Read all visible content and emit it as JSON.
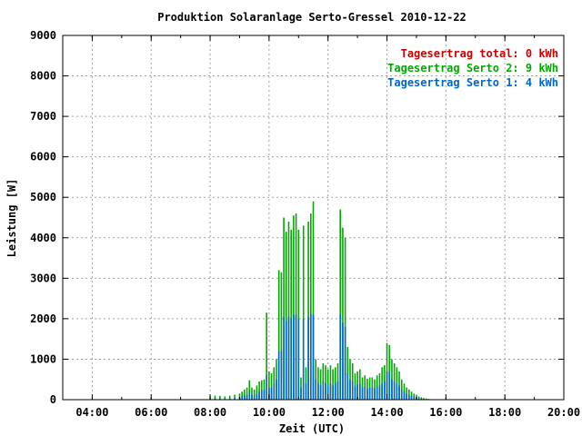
{
  "chart_data": {
    "type": "bar",
    "title": "Produktion Solaranlage Serto-Gressel 2010-12-22",
    "xlabel": "Zeit (UTC)",
    "ylabel": "Leistung [W]",
    "xlim": [
      "03:00",
      "20:00"
    ],
    "ylim": [
      0,
      9000
    ],
    "x_ticks": [
      "04:00",
      "06:00",
      "08:00",
      "10:00",
      "12:00",
      "14:00",
      "16:00",
      "18:00",
      "20:00"
    ],
    "y_ticks": [
      "0",
      "1000",
      "2000",
      "3000",
      "4000",
      "5000",
      "6000",
      "7000",
      "8000",
      "9000"
    ],
    "grid": true,
    "legend_position": "top-right",
    "legend": [
      {
        "label": "Tagesertrag total: 0 kWh",
        "color": "#cc0000"
      },
      {
        "label": "Tagesertrag Serto 2: 9 kWh",
        "color": "#00aa00"
      },
      {
        "label": "Tagesertrag Serto 1: 4 kWh",
        "color": "#0066cc"
      }
    ],
    "x": [
      "08:00",
      "08:10",
      "08:20",
      "08:30",
      "08:40",
      "08:50",
      "09:00",
      "09:05",
      "09:10",
      "09:15",
      "09:20",
      "09:25",
      "09:30",
      "09:35",
      "09:40",
      "09:45",
      "09:50",
      "09:55",
      "10:00",
      "10:05",
      "10:10",
      "10:15",
      "10:20",
      "10:25",
      "10:30",
      "10:35",
      "10:40",
      "10:45",
      "10:50",
      "10:55",
      "11:00",
      "11:05",
      "11:10",
      "11:15",
      "11:20",
      "11:25",
      "11:30",
      "11:35",
      "11:40",
      "11:45",
      "11:50",
      "11:55",
      "12:00",
      "12:05",
      "12:10",
      "12:15",
      "12:20",
      "12:25",
      "12:30",
      "12:35",
      "12:40",
      "12:45",
      "12:50",
      "12:55",
      "13:00",
      "13:05",
      "13:10",
      "13:15",
      "13:20",
      "13:25",
      "13:30",
      "13:35",
      "13:40",
      "13:45",
      "13:50",
      "13:55",
      "14:00",
      "14:05",
      "14:10",
      "14:15",
      "14:20",
      "14:25",
      "14:30",
      "14:35",
      "14:40",
      "14:45",
      "14:50",
      "14:55",
      "15:00",
      "15:05",
      "15:10",
      "15:15",
      "15:20",
      "15:25",
      "15:30",
      "15:35",
      "15:40"
    ],
    "series": [
      {
        "name": "Serto 2",
        "color": "#00aa00",
        "values": [
          80,
          100,
          90,
          80,
          100,
          120,
          150,
          200,
          250,
          300,
          480,
          300,
          250,
          350,
          450,
          480,
          500,
          2150,
          700,
          650,
          800,
          1000,
          3200,
          3150,
          4500,
          4150,
          4400,
          4200,
          4550,
          4600,
          4200,
          550,
          4300,
          800,
          4400,
          4600,
          4900,
          1000,
          800,
          750,
          900,
          850,
          750,
          850,
          750,
          800,
          900,
          4700,
          4250,
          4000,
          1300,
          1000,
          900,
          650,
          700,
          750,
          550,
          600,
          520,
          550,
          550,
          500,
          600,
          650,
          800,
          850,
          1400,
          1350,
          1000,
          900,
          800,
          700,
          500,
          400,
          300,
          250,
          200,
          150,
          120,
          80,
          60,
          40,
          30,
          20,
          10,
          5,
          0
        ],
        "series_note": ""
      },
      {
        "name": "Serto 1",
        "color": "#0066cc",
        "values": [
          20,
          30,
          30,
          20,
          30,
          40,
          50,
          80,
          100,
          120,
          200,
          120,
          100,
          150,
          200,
          220,
          250,
          600,
          300,
          300,
          400,
          500,
          1200,
          1200,
          2050,
          1950,
          2050,
          2000,
          2100,
          2100,
          2000,
          300,
          2000,
          400,
          2050,
          2100,
          2100,
          500,
          400,
          350,
          450,
          400,
          350,
          400,
          350,
          400,
          450,
          2100,
          1900,
          1800,
          650,
          500,
          450,
          350,
          380,
          400,
          300,
          320,
          280,
          300,
          300,
          280,
          320,
          350,
          400,
          450,
          700,
          680,
          500,
          450,
          400,
          350,
          250,
          200,
          150,
          120,
          100,
          80,
          60,
          40,
          30,
          20,
          15,
          10,
          5,
          2,
          0
        ]
      }
    ]
  }
}
